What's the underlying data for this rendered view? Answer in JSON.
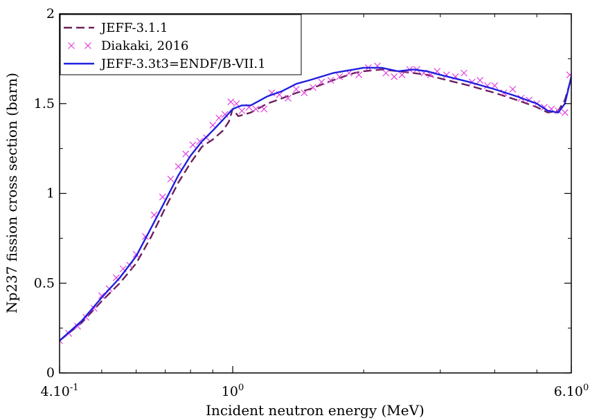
{
  "chart_data": {
    "type": "line",
    "xlabel": "Incident neutron energy (MeV)",
    "ylabel": "Np237 fission cross section (barn)",
    "x_scale": "log",
    "xlim": [
      0.4,
      6.0
    ],
    "ylim": [
      0,
      2
    ],
    "grid": false,
    "legend_position": "top-left",
    "x_ticks": [
      {
        "value": 0.4,
        "base": "4.10",
        "exp": "-1"
      },
      {
        "value": 1.0,
        "base": "10",
        "exp": "0"
      },
      {
        "value": 6.0,
        "base": "6.10",
        "exp": "0"
      }
    ],
    "y_ticks": [
      {
        "value": 0,
        "label": "0"
      },
      {
        "value": 0.5,
        "label": "0.5"
      },
      {
        "value": 1,
        "label": "1"
      },
      {
        "value": 1.5,
        "label": "1.5"
      },
      {
        "value": 2,
        "label": "2"
      }
    ],
    "series": [
      {
        "name": "JEFF-3.1.1",
        "style": "dashed",
        "color": "#6b1f5a",
        "x": [
          0.4,
          0.45,
          0.5,
          0.55,
          0.6,
          0.65,
          0.7,
          0.75,
          0.8,
          0.85,
          0.9,
          0.95,
          0.98,
          1.0,
          1.03,
          1.1,
          1.2,
          1.3,
          1.4,
          1.5,
          1.7,
          1.9,
          2.0,
          2.2,
          2.4,
          2.6,
          2.8,
          3.0,
          3.5,
          4.0,
          4.5,
          5.0,
          5.3,
          5.6,
          5.8,
          6.0
        ],
        "y": [
          0.18,
          0.28,
          0.4,
          0.5,
          0.61,
          0.76,
          0.92,
          1.06,
          1.17,
          1.26,
          1.3,
          1.35,
          1.4,
          1.47,
          1.43,
          1.45,
          1.5,
          1.53,
          1.56,
          1.58,
          1.63,
          1.67,
          1.68,
          1.69,
          1.68,
          1.67,
          1.66,
          1.64,
          1.6,
          1.56,
          1.52,
          1.48,
          1.45,
          1.46,
          1.52,
          1.64
        ]
      },
      {
        "name": "Diakaki, 2016",
        "style": "markers",
        "color": "#e040e0",
        "x": [
          0.4,
          0.42,
          0.44,
          0.46,
          0.48,
          0.5,
          0.52,
          0.54,
          0.56,
          0.58,
          0.6,
          0.63,
          0.66,
          0.69,
          0.72,
          0.75,
          0.78,
          0.81,
          0.84,
          0.87,
          0.9,
          0.93,
          0.96,
          0.99,
          1.02,
          1.05,
          1.09,
          1.13,
          1.18,
          1.23,
          1.28,
          1.34,
          1.4,
          1.46,
          1.53,
          1.6,
          1.68,
          1.76,
          1.85,
          1.95,
          2.05,
          2.15,
          2.25,
          2.35,
          2.45,
          2.55,
          2.65,
          2.75,
          2.85,
          2.95,
          3.1,
          3.25,
          3.4,
          3.55,
          3.7,
          3.85,
          4.0,
          4.2,
          4.4,
          4.6,
          4.8,
          5.0,
          5.2,
          5.4,
          5.6,
          5.8,
          5.95
        ],
        "y": [
          0.18,
          0.22,
          0.26,
          0.31,
          0.36,
          0.43,
          0.47,
          0.53,
          0.58,
          0.6,
          0.66,
          0.76,
          0.88,
          0.98,
          1.08,
          1.15,
          1.22,
          1.27,
          1.29,
          1.31,
          1.38,
          1.42,
          1.44,
          1.51,
          1.5,
          1.46,
          1.48,
          1.47,
          1.47,
          1.56,
          1.55,
          1.53,
          1.58,
          1.56,
          1.59,
          1.62,
          1.63,
          1.65,
          1.67,
          1.66,
          1.7,
          1.71,
          1.67,
          1.65,
          1.66,
          1.69,
          1.69,
          1.67,
          1.66,
          1.68,
          1.66,
          1.65,
          1.67,
          1.62,
          1.63,
          1.6,
          1.6,
          1.56,
          1.58,
          1.53,
          1.52,
          1.5,
          1.48,
          1.47,
          1.46,
          1.45,
          1.66
        ]
      },
      {
        "name": "JEFF-3.3t3=ENDF/B-VII.1",
        "style": "solid",
        "color": "#1f1fe0",
        "x": [
          0.4,
          0.45,
          0.5,
          0.55,
          0.6,
          0.65,
          0.7,
          0.75,
          0.8,
          0.85,
          0.9,
          0.95,
          1.0,
          1.05,
          1.1,
          1.2,
          1.3,
          1.4,
          1.5,
          1.7,
          1.9,
          2.0,
          2.2,
          2.4,
          2.6,
          2.8,
          3.0,
          3.5,
          4.0,
          4.5,
          5.0,
          5.3,
          5.6,
          5.8,
          6.0
        ],
        "y": [
          0.18,
          0.29,
          0.42,
          0.53,
          0.65,
          0.81,
          0.96,
          1.1,
          1.21,
          1.29,
          1.35,
          1.41,
          1.47,
          1.49,
          1.49,
          1.54,
          1.57,
          1.61,
          1.63,
          1.67,
          1.69,
          1.7,
          1.7,
          1.68,
          1.69,
          1.68,
          1.66,
          1.62,
          1.58,
          1.54,
          1.5,
          1.46,
          1.45,
          1.5,
          1.65
        ]
      }
    ]
  }
}
